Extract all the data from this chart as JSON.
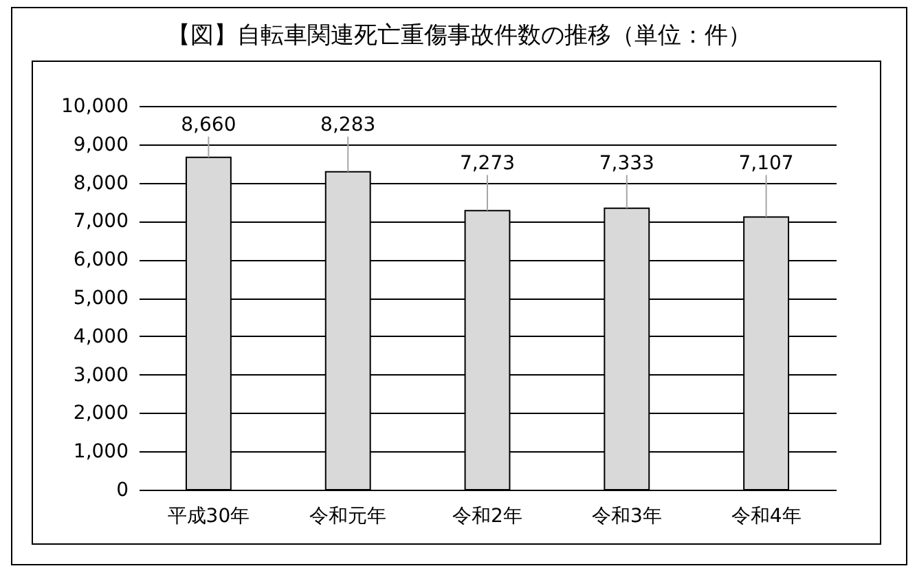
{
  "chart_data": {
    "type": "bar",
    "title": "【図】自転車関連死亡重傷事故件数の推移（単位：件）",
    "categories": [
      "平成30年",
      "令和元年",
      "令和2年",
      "令和3年",
      "令和4年"
    ],
    "values": [
      8660,
      8283,
      7273,
      7333,
      7107
    ],
    "value_labels": [
      "8,660",
      "8,283",
      "7,273",
      "7,333",
      "7,107"
    ],
    "color": "#d9d9d9",
    "ylim": [
      0,
      10000
    ],
    "yticks": [
      0,
      {
        "value": 1000,
        "label": "1,000"
      },
      {
        "value": 2000,
        "label": "2,000"
      },
      {
        "value": 3000,
        "label": "3,000"
      },
      {
        "value": 4000,
        "label": "4,000"
      },
      {
        "value": 5000,
        "label": "5,000"
      },
      {
        "value": 6000,
        "label": "6,000"
      },
      {
        "value": 7000,
        "label": "7,000"
      },
      {
        "value": 8000,
        "label": "8,000"
      },
      {
        "value": 9000,
        "label": "9,000"
      },
      {
        "value": 10000,
        "label": "10,000"
      }
    ],
    "grid": "y"
  }
}
